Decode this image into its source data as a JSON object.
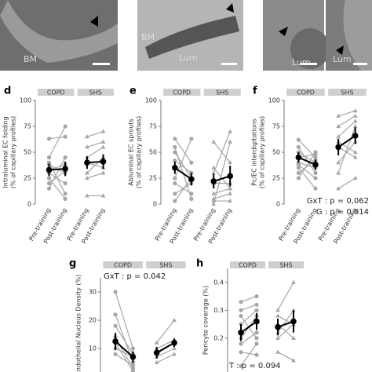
{
  "image_labels": [
    "BM",
    "BM",
    "Lum",
    "Lum",
    "Lum"
  ],
  "chart_data": [
    {
      "type": "paired",
      "panel": "d",
      "ylabel": [
        "Intraluminal EC folding",
        "(% of capillary profiles)"
      ],
      "ylim": [
        0,
        100
      ],
      "yticks": [
        0,
        25,
        50,
        75,
        100
      ],
      "categories": [
        "Pre-training",
        "Post-training"
      ],
      "color": "#a6a6a6",
      "mean_color": "#000000",
      "groups": [
        {
          "name": "COPD",
          "marker": "circle",
          "subjects": [
            [
              63,
              65
            ],
            [
              45,
              75
            ],
            [
              40,
              10
            ],
            [
              38,
              30
            ],
            [
              33,
              38
            ],
            [
              30,
              20
            ],
            [
              25,
              5
            ],
            [
              20,
              32
            ],
            [
              15,
              45
            ]
          ],
          "mean": [
            33,
            34
          ],
          "error": [
            6,
            7
          ]
        },
        {
          "name": "SHS",
          "marker": "triangle",
          "subjects": [
            [
              65,
              70
            ],
            [
              55,
              60
            ],
            [
              45,
              55
            ],
            [
              40,
              35
            ],
            [
              30,
              45
            ],
            [
              25,
              30
            ],
            [
              8,
              8
            ]
          ],
          "mean": [
            40,
            41
          ],
          "error": [
            6,
            7
          ]
        }
      ],
      "annotations": []
    },
    {
      "type": "paired",
      "panel": "e",
      "ylabel": [
        "Abluminal EC sprouts",
        "(% of capillary profiles)"
      ],
      "ylim": [
        0,
        100
      ],
      "yticks": [
        0,
        25,
        50,
        75,
        100
      ],
      "categories": [
        "Pre-training",
        "Post-training"
      ],
      "color": "#a6a6a6",
      "mean_color": "#000000",
      "groups": [
        {
          "name": "COPD",
          "marker": "circle",
          "subjects": [
            [
              63,
              40
            ],
            [
              55,
              5
            ],
            [
              50,
              25
            ],
            [
              42,
              30
            ],
            [
              25,
              63
            ],
            [
              20,
              10
            ],
            [
              10,
              20
            ],
            [
              3,
              25
            ]
          ],
          "mean": [
            35,
            24
          ],
          "error": [
            6,
            6
          ]
        },
        {
          "name": "SHS",
          "marker": "triangle",
          "subjects": [
            [
              60,
              40
            ],
            [
              35,
              15
            ],
            [
              30,
              70
            ],
            [
              20,
              20
            ],
            [
              10,
              15
            ],
            [
              5,
              10
            ],
            [
              3,
              3
            ],
            [
              0,
              60
            ]
          ],
          "mean": [
            22,
            27
          ],
          "error": [
            7,
            10
          ]
        }
      ],
      "annotations": []
    },
    {
      "type": "paired",
      "panel": "f",
      "ylabel": [
        "Pc/EC interdigitations",
        "(% of capillary profiles)"
      ],
      "ylim": [
        0,
        100
      ],
      "yticks": [
        0,
        25,
        50,
        75,
        100
      ],
      "categories": [
        "Pre-training",
        "Post-training"
      ],
      "color": "#a6a6a6",
      "mean_color": "#000000",
      "groups": [
        {
          "name": "COPD",
          "marker": "circle",
          "subjects": [
            [
              62,
              45
            ],
            [
              55,
              30
            ],
            [
              50,
              40
            ],
            [
              45,
              48
            ],
            [
              40,
              35
            ],
            [
              38,
              25
            ],
            [
              35,
              15
            ],
            [
              30,
              42
            ],
            [
              25,
              50
            ]
          ],
          "mean": [
            45,
            38
          ],
          "error": [
            5,
            5
          ]
        },
        {
          "name": "SHS",
          "marker": "triangle",
          "subjects": [
            [
              85,
              90
            ],
            [
              75,
              85
            ],
            [
              65,
              80
            ],
            [
              60,
              50
            ],
            [
              55,
              45
            ],
            [
              40,
              60
            ],
            [
              30,
              75
            ],
            [
              15,
              25
            ]
          ],
          "mean": [
            55,
            66
          ],
          "error": [
            8,
            8
          ]
        }
      ],
      "annotations": [
        "GxT : p = 0,062",
        "G : p = 0,014"
      ]
    },
    {
      "type": "paired",
      "panel": "g",
      "ylabel": [
        "Endothelial Nucleus Density (%)"
      ],
      "ylim": [
        0,
        35
      ],
      "yticks": [
        10,
        20,
        30
      ],
      "color": "#a6a6a6",
      "mean_color": "#000000",
      "groups": [
        {
          "name": "COPD",
          "marker": "circle",
          "subjects": [
            [
              30,
              10
            ],
            [
              22,
              5
            ],
            [
              18,
              8
            ],
            [
              14,
              3
            ],
            [
              12,
              2
            ],
            [
              10,
              7
            ],
            [
              8,
              4
            ]
          ],
          "mean": [
            12.5,
            7
          ],
          "error": [
            3,
            2
          ]
        },
        {
          "name": "SHS",
          "marker": "triangle",
          "subjects": [
            [
              12,
              20
            ],
            [
              10,
              13
            ],
            [
              8,
              12
            ],
            [
              7,
              10
            ],
            [
              5,
              8
            ]
          ],
          "mean": [
            8.5,
            12
          ],
          "error": [
            2,
            1.5
          ]
        }
      ],
      "annotations": [
        "GxT : p = 0.042"
      ]
    },
    {
      "type": "paired",
      "panel": "h",
      "ylabel": [
        "Pericyte coverage (%)"
      ],
      "ylim": [
        0,
        0.45
      ],
      "yticks": [
        0.2,
        0.3,
        0.4
      ],
      "color": "#a6a6a6",
      "mean_color": "#000000",
      "groups": [
        {
          "name": "COPD",
          "marker": "circle",
          "subjects": [
            [
              0.33,
              0.35
            ],
            [
              0.3,
              0.32
            ],
            [
              0.28,
              0.2
            ],
            [
              0.25,
              0.3
            ],
            [
              0.2,
              0.28
            ],
            [
              0.18,
              0.22
            ],
            [
              0.15,
              0.14
            ],
            [
              0.1,
              0.18
            ]
          ],
          "mean": [
            0.22,
            0.26
          ],
          "error": [
            0.03,
            0.03
          ]
        },
        {
          "name": "SHS",
          "marker": "triangle",
          "subjects": [
            [
              0.3,
              0.4
            ],
            [
              0.28,
              0.25
            ],
            [
              0.25,
              0.2
            ],
            [
              0.22,
              0.3
            ],
            [
              0.2,
              0.25
            ],
            [
              0.15,
              0.12
            ]
          ],
          "mean": [
            0.24,
            0.26
          ],
          "error": [
            0.03,
            0.04
          ]
        }
      ],
      "annotations": [
        "T : p = 0.094"
      ]
    }
  ]
}
